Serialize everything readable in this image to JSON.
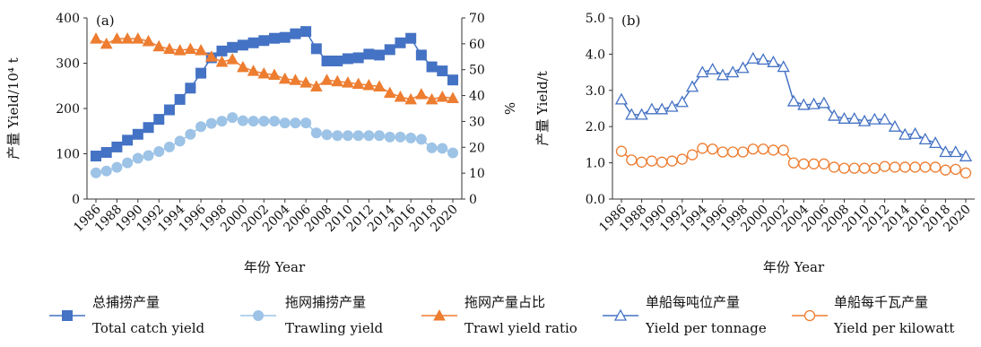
{
  "chart_data": [
    {
      "id": "a",
      "type": "line",
      "panel_label": "(a)",
      "x": [
        1986,
        1987,
        1988,
        1989,
        1990,
        1991,
        1992,
        1993,
        1994,
        1995,
        1996,
        1997,
        1998,
        1999,
        2000,
        2001,
        2002,
        2003,
        2004,
        2005,
        2006,
        2007,
        2008,
        2009,
        2010,
        2011,
        2012,
        2013,
        2014,
        2015,
        2016,
        2017,
        2018,
        2019,
        2020
      ],
      "xticks": [
        "1986",
        "1988",
        "1990",
        "1992",
        "1994",
        "1996",
        "1998",
        "2000",
        "2002",
        "2004",
        "2006",
        "2008",
        "2010",
        "2012",
        "2014",
        "2016",
        "2018",
        "2020"
      ],
      "xlabel": "年份 Year",
      "ylabel": "产量 Yield/10⁴ t",
      "ylim": [
        0,
        400
      ],
      "yticks": [
        "0",
        "100",
        "200",
        "300",
        "400"
      ],
      "y2label": "%",
      "y2lim": [
        0,
        70
      ],
      "y2ticks": [
        "0",
        "10",
        "20",
        "30",
        "40",
        "50",
        "60",
        "70"
      ],
      "series": [
        {
          "name_cn": "总捕捞产量",
          "name_en": "Total catch yield",
          "axis": "left",
          "color": "#4472c4",
          "marker": "square",
          "values": [
            95,
            103,
            115,
            130,
            143,
            158,
            176,
            197,
            220,
            245,
            278,
            312,
            327,
            335,
            340,
            345,
            350,
            355,
            357,
            365,
            370,
            332,
            305,
            305,
            310,
            312,
            320,
            318,
            330,
            345,
            355,
            318,
            292,
            283,
            263
          ]
        },
        {
          "name_cn": "拖网捕捞产量",
          "name_en": "Trawling yield",
          "axis": "left",
          "color": "#9dc3e6",
          "marker": "circle",
          "values": [
            58,
            62,
            70,
            80,
            90,
            96,
            105,
            115,
            128,
            143,
            160,
            167,
            172,
            180,
            173,
            172,
            172,
            172,
            168,
            168,
            168,
            146,
            142,
            140,
            140,
            140,
            140,
            140,
            137,
            137,
            135,
            132,
            113,
            112,
            102
          ]
        },
        {
          "name_cn": "拖网产量占比",
          "name_en": "Trawl yield ratio",
          "axis": "right",
          "color": "#ed7d31",
          "marker": "triangle",
          "values": [
            62,
            60,
            62,
            62,
            62,
            61,
            59,
            58,
            57.5,
            58,
            57.5,
            55,
            53,
            54,
            51,
            49.5,
            48.5,
            48,
            46.5,
            46,
            45,
            43.5,
            46,
            45.5,
            45,
            44.5,
            44,
            43.5,
            41,
            39.5,
            38.5,
            40.5,
            38.5,
            39.5,
            39
          ]
        }
      ]
    },
    {
      "id": "b",
      "type": "line",
      "panel_label": "(b)",
      "x": [
        1986,
        1987,
        1988,
        1989,
        1990,
        1991,
        1992,
        1993,
        1994,
        1995,
        1996,
        1997,
        1998,
        1999,
        2000,
        2001,
        2002,
        2003,
        2004,
        2005,
        2006,
        2007,
        2008,
        2009,
        2010,
        2011,
        2012,
        2013,
        2014,
        2015,
        2016,
        2017,
        2018,
        2019,
        2020
      ],
      "xticks": [
        "1986",
        "1988",
        "1990",
        "1992",
        "1994",
        "1996",
        "1998",
        "2000",
        "2002",
        "2004",
        "2006",
        "2008",
        "2010",
        "2012",
        "2014",
        "2016",
        "2018",
        "2020"
      ],
      "xlabel": "年份 Year",
      "ylabel": "产量 Yield/t",
      "ylim": [
        0,
        5
      ],
      "yticks": [
        "0.0",
        "1.0",
        "2.0",
        "3.0",
        "4.0",
        "5.0"
      ],
      "series": [
        {
          "name_cn": "单船每吨位产量",
          "name_en": "Yield per tonnage",
          "axis": "left",
          "color": "#4472c4",
          "marker": "open-triangle",
          "values": [
            2.75,
            2.33,
            2.33,
            2.48,
            2.48,
            2.55,
            2.68,
            3.1,
            3.5,
            3.58,
            3.42,
            3.5,
            3.62,
            3.88,
            3.85,
            3.78,
            3.65,
            2.7,
            2.6,
            2.62,
            2.65,
            2.3,
            2.22,
            2.22,
            2.15,
            2.2,
            2.2,
            2.0,
            1.78,
            1.8,
            1.65,
            1.55,
            1.3,
            1.3,
            1.18
          ]
        },
        {
          "name_cn": "单船每千瓦产量",
          "name_en": "Yield per kilowatt",
          "axis": "left",
          "color": "#ed7d31",
          "marker": "open-circle",
          "values": [
            1.32,
            1.08,
            1.02,
            1.05,
            1.02,
            1.05,
            1.1,
            1.22,
            1.4,
            1.38,
            1.3,
            1.3,
            1.3,
            1.38,
            1.38,
            1.35,
            1.35,
            1.0,
            0.97,
            0.97,
            0.97,
            0.88,
            0.85,
            0.85,
            0.85,
            0.85,
            0.9,
            0.88,
            0.88,
            0.88,
            0.88,
            0.88,
            0.8,
            0.82,
            0.72
          ]
        }
      ]
    }
  ]
}
